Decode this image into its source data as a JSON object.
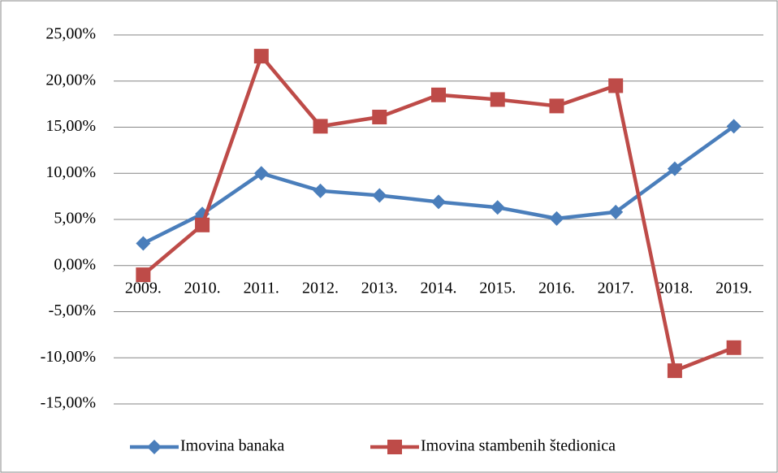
{
  "chart_data": {
    "type": "line",
    "categories": [
      "2009.",
      "2010.",
      "2011.",
      "2012.",
      "2013.",
      "2014.",
      "2015.",
      "2016.",
      "2017.",
      "2018.",
      "2019."
    ],
    "series": [
      {
        "name": "Imovina banaka",
        "color": "#4a7ebb",
        "marker": "diamond",
        "values": [
          2.4,
          5.6,
          10.0,
          8.1,
          7.6,
          6.9,
          6.3,
          5.1,
          5.8,
          10.5,
          15.1
        ]
      },
      {
        "name": "Imovina stambenih štedionica",
        "color": "#be4b48",
        "marker": "square",
        "values": [
          -1.0,
          4.4,
          22.7,
          15.1,
          16.1,
          18.5,
          18.0,
          17.3,
          19.5,
          -11.4,
          -8.9
        ]
      }
    ],
    "ylim": [
      -15,
      25
    ],
    "yticks": [
      {
        "value": -15,
        "label": "-15,00%"
      },
      {
        "value": -10,
        "label": "-10,00%"
      },
      {
        "value": -5,
        "label": "-5,00%"
      },
      {
        "value": 0,
        "label": "0,00%"
      },
      {
        "value": 5,
        "label": "5,00%"
      },
      {
        "value": 10,
        "label": "10,00%"
      },
      {
        "value": 15,
        "label": "15,00%"
      },
      {
        "value": 20,
        "label": "20,00%"
      },
      {
        "value": 25,
        "label": "25,00%"
      }
    ],
    "grid": true,
    "legend": "bottom"
  }
}
